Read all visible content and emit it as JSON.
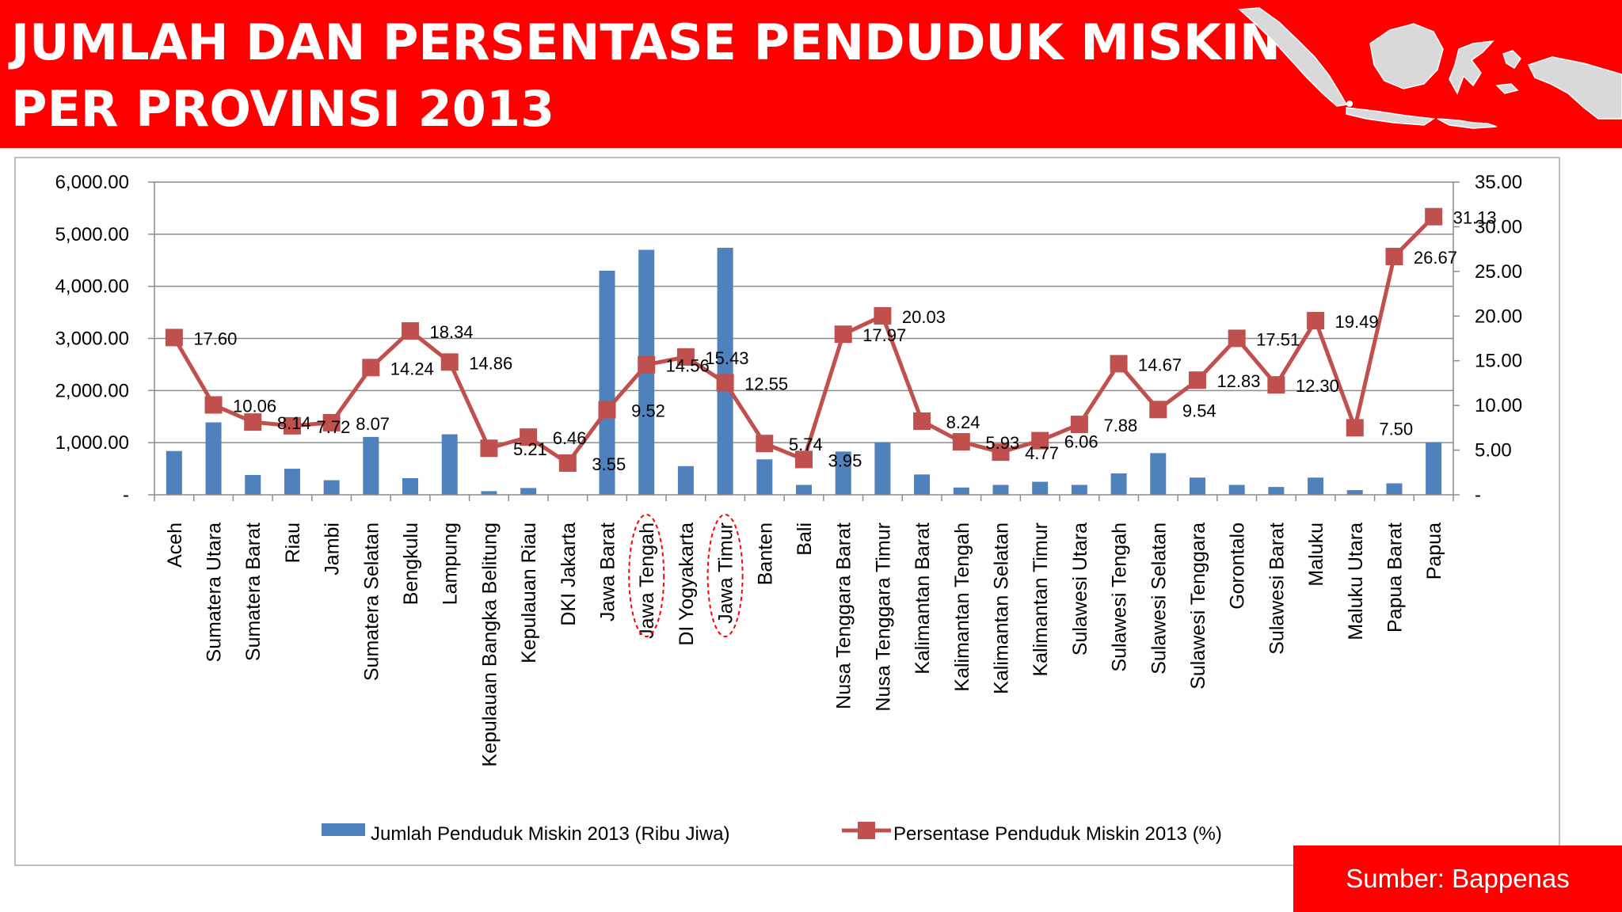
{
  "header": {
    "title_line1": "JUMLAH DAN PERSENTASE PENDUDUK MISKIN",
    "title_line2": "PER PROVINSI 2013"
  },
  "source": "Sumber: Bappenas",
  "colors": {
    "header": "#ff0000",
    "bar": "#4f81bd",
    "line": "#c0504d",
    "highlight": "#ff0000"
  },
  "chart_data": {
    "type": "bar",
    "title": "",
    "categories": [
      "Aceh",
      "Sumatera Utara",
      "Sumatera Barat",
      "Riau",
      "Jambi",
      "Sumatera Selatan",
      "Bengkulu",
      "Lampung",
      "Kepulauan Bangka  Belitung",
      "Kepulauan Riau",
      "DKI Jakarta",
      "Jawa Barat",
      "Jawa Tengah",
      "DI Yogyakarta",
      "Jawa Timur",
      "Banten",
      "Bali",
      "Nusa Tenggara Barat",
      "Nusa Tenggara Timur",
      "Kalimantan Barat",
      "Kalimantan Tengah",
      "Kalimantan Selatan",
      "Kalimantan Timur",
      "Sulawesi Utara",
      "Sulawesi Tengah",
      "Sulawesi Selatan",
      "Sulawesi Tenggara",
      "Gorontalo",
      "Sulawesi Barat",
      "Maluku",
      "Maluku Utara",
      "Papua Barat",
      "Papua"
    ],
    "series": [
      {
        "name": "Jumlah Penduduk Miskin  2013  (Ribu Jiwa)",
        "type": "bar",
        "axis": "left",
        "values": [
          840,
          1390,
          380,
          500,
          280,
          1110,
          320,
          1160,
          70,
          130,
          0,
          4300,
          4700,
          550,
          4740,
          680,
          190,
          830,
          1010,
          390,
          140,
          190,
          250,
          190,
          410,
          800,
          330,
          190,
          150,
          330,
          90,
          220,
          1010
        ]
      },
      {
        "name": "Persentase Penduduk Miskin  2013 (%)",
        "type": "line",
        "axis": "right",
        "values": [
          17.6,
          10.06,
          8.14,
          7.72,
          8.07,
          14.24,
          18.34,
          14.86,
          5.21,
          6.46,
          3.55,
          9.52,
          14.56,
          15.43,
          12.55,
          5.74,
          3.95,
          17.97,
          20.03,
          8.24,
          5.93,
          4.77,
          6.06,
          7.88,
          14.67,
          9.54,
          12.83,
          17.51,
          12.3,
          19.49,
          7.5,
          26.67,
          31.13
        ]
      }
    ],
    "point_labels": [
      "17.60",
      "10.06",
      "8.14",
      "7.72",
      "8.07",
      "14.24",
      "18.34",
      "14.86",
      "5.21",
      "6.46",
      "3.55",
      "9.52",
      "14.56",
      "15.43",
      "12.55",
      "5.74",
      "3.95",
      "17.97",
      "20.03",
      "8.24",
      "5.93",
      "4.77",
      "6.06",
      "7.88",
      "14.67",
      "9.54",
      "12.83",
      "17.51",
      "12.30",
      "19.49",
      "7.50",
      "26.67",
      "31.13"
    ],
    "y_left": {
      "min": 0,
      "max": 6000,
      "ticks": [
        "-",
        "1,000.00",
        "2,000.00",
        "3,000.00",
        "4,000.00",
        "5,000.00",
        "6,000.00"
      ]
    },
    "y_right": {
      "min": 0,
      "max": 35,
      "ticks": [
        "-",
        "5.00",
        "10.00",
        "15.00",
        "20.00",
        "25.00",
        "30.00",
        "35.00"
      ]
    },
    "gridlines": true,
    "legend_position": "bottom",
    "highlighted_categories": [
      "Jawa Tengah",
      "Jawa Timur"
    ]
  }
}
